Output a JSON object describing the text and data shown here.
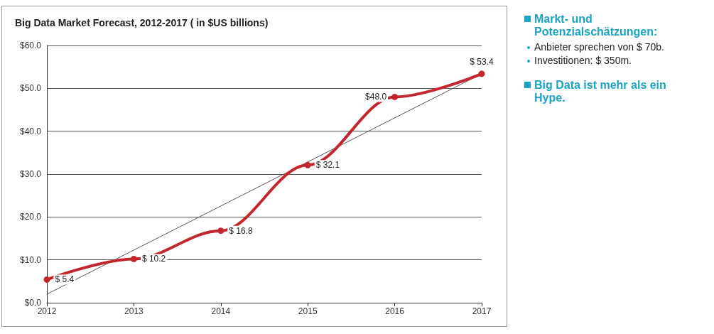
{
  "chart_data": {
    "type": "line",
    "title": "Big Data Market Forecast, 2012-2017 ( in $US billions)",
    "x": [
      2012,
      2013,
      2014,
      2015,
      2016,
      2017
    ],
    "series": [
      {
        "name": null,
        "color": "#c4262e",
        "values": [
          5.4,
          10.2,
          16.8,
          32.1,
          48.0,
          53.4
        ],
        "value_labels": [
          "$ 5.4",
          "$ 10.2",
          "$ 16.8",
          "$ 32.1",
          "$48.0",
          "$ 53.4"
        ],
        "marker": "circle"
      },
      {
        "type": "line",
        "color": "#555555",
        "x": [
          2012,
          2017
        ],
        "values": [
          2,
          53.4
        ],
        "marker": "none"
      }
    ],
    "xlim": [
      2012,
      2017
    ],
    "xticks": [
      2012,
      2013,
      2014,
      2015,
      2016,
      2017
    ],
    "ylim": [
      0,
      60
    ],
    "yticks": [
      {
        "value": 0,
        "label": "$0.0"
      },
      {
        "value": 10,
        "label": "$10.0"
      },
      {
        "value": 20,
        "label": "$20.0"
      },
      {
        "value": 30,
        "label": "$30.0"
      },
      {
        "value": 40,
        "label": "$40.0"
      },
      {
        "value": 50,
        "label": "$50.0"
      },
      {
        "value": 60,
        "label": "$60.0"
      }
    ],
    "grid": "y",
    "annotations": [
      "Markt- und Potenzialschätzungen:",
      "Anbieter sprechen von $ 70b.",
      "Investitionen: $ 350m.",
      "Big Data ist mehr als ein Hype."
    ]
  }
}
